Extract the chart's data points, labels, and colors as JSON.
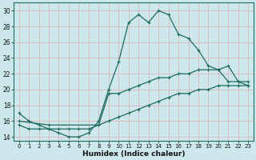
{
  "xlabel": "Humidex (Indice chaleur)",
  "bg_color": "#cde8ec",
  "grid_color": "#ddb8b8",
  "line_color": "#1e6b5e",
  "xlim": [
    -0.5,
    23.5
  ],
  "ylim": [
    13.5,
    31
  ],
  "yticks": [
    14,
    16,
    18,
    20,
    22,
    24,
    26,
    28,
    30
  ],
  "xticks": [
    0,
    1,
    2,
    3,
    4,
    5,
    6,
    7,
    8,
    9,
    10,
    11,
    12,
    13,
    14,
    15,
    16,
    17,
    18,
    19,
    20,
    21,
    22,
    23
  ],
  "line1_x": [
    0,
    1,
    2,
    3,
    4,
    5,
    6,
    7,
    8,
    9,
    10,
    11,
    12,
    13,
    14,
    15,
    16,
    17,
    18,
    19,
    20,
    21,
    22,
    23
  ],
  "line1_y": [
    17,
    16,
    15.5,
    15,
    14.5,
    14,
    14,
    14.5,
    16,
    20,
    23.5,
    28.5,
    29.5,
    28.5,
    30,
    29.5,
    27,
    26.5,
    25,
    23,
    22.5,
    21,
    21,
    20.5
  ],
  "line2_x": [
    0,
    3,
    8,
    9,
    10,
    11,
    12,
    13,
    14,
    15,
    16,
    17,
    18,
    19,
    20,
    21,
    22,
    23
  ],
  "line2_y": [
    16,
    15.5,
    15.5,
    19.5,
    19.5,
    20,
    20.5,
    21,
    21.5,
    21.5,
    22,
    22,
    22.5,
    22.5,
    22.5,
    23,
    21,
    21
  ],
  "line3_x": [
    0,
    1,
    2,
    3,
    4,
    5,
    6,
    7,
    8,
    9,
    10,
    11,
    12,
    13,
    14,
    15,
    16,
    17,
    18,
    19,
    20,
    21,
    22,
    23
  ],
  "line3_y": [
    15.5,
    15,
    15,
    15,
    15,
    15,
    15,
    15,
    15.5,
    16,
    16.5,
    17,
    17.5,
    18,
    18.5,
    19,
    19.5,
    19.5,
    20,
    20,
    20.5,
    20.5,
    20.5,
    20.5
  ]
}
